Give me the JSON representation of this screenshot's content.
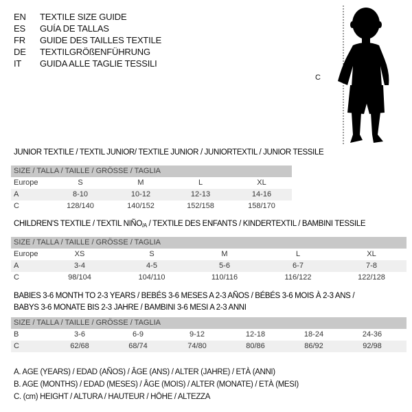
{
  "languages": [
    {
      "code": "EN",
      "title": "TEXTILE SIZE GUIDE"
    },
    {
      "code": "ES",
      "title": "GUÍA DE TALLAS"
    },
    {
      "code": "FR",
      "title": "GUIDE DES TAILLES TEXTILE"
    },
    {
      "code": "DE",
      "title": "TEXTILGRÖßENFÜHRUNG"
    },
    {
      "code": "IT",
      "title": "GUIDA ALLE TAGLIE TESSILI"
    }
  ],
  "figure": {
    "measure_label": "C",
    "icon": "child-silhouette-icon"
  },
  "junior": {
    "title": "JUNIOR TEXTILE / TEXTIL JUNIOR/ TEXTILE JUNIOR / JUNIORTEXTIL / JUNIOR TESSILE",
    "header": "SIZE / TALLA / TAILLE / GRÖSSE / TAGLIA",
    "rows": [
      {
        "label": "Europe",
        "values": [
          "S",
          "M",
          "L",
          "XL"
        ]
      },
      {
        "label": "A",
        "values": [
          "8-10",
          "10-12",
          "12-13",
          "14-16"
        ]
      },
      {
        "label": "C",
        "values": [
          "128/140",
          "140/152",
          "152/158",
          "158/170"
        ]
      }
    ]
  },
  "children": {
    "title_main": "CHILDREN'S TEXTILE / TEXTIL NIÑO",
    "title_sub": "/A",
    "title_rest": " / TEXTILE DES ENFANTS / KINDERTEXTIL / BAMBINI TESSILE",
    "header": "SIZE / TALLA / TAILLE / GRÖSSE / TAGLIA",
    "rows": [
      {
        "label": "Europe",
        "values": [
          "XS",
          "S",
          "M",
          "L",
          "XL"
        ]
      },
      {
        "label": "A",
        "values": [
          "3-4",
          "4-5",
          "5-6",
          "6-7",
          "7-8"
        ]
      },
      {
        "label": "C",
        "values": [
          "98/104",
          "104/110",
          "110/116",
          "116/122",
          "122/128"
        ]
      }
    ]
  },
  "babies": {
    "title_line1": "BABIES 3-6 MONTH TO 2-3 YEARS / BEBÉS 3-6 MESES A 2-3 AÑOS / BÉBÉS 3-6 MOIS À 2-3 ANS /",
    "title_line2": "BABYS 3-6 MONATE BIS 2-3 JAHRE / BAMBINI 3-6 MESI A 2-3 ANNI",
    "header": "SIZE / TALLA / TAILLE / GRÖSSE / TAGLIA",
    "rows": [
      {
        "label": "B",
        "values": [
          "3-6",
          "6-9",
          "9-12",
          "12-18",
          "18-24",
          "24-36"
        ]
      },
      {
        "label": "C",
        "values": [
          "62/68",
          "68/74",
          "74/80",
          "80/86",
          "86/92",
          "92/98"
        ]
      }
    ]
  },
  "legend": [
    "A. AGE (YEARS) / EDAD (AÑOS) / ÂGE (ANS) / ALTER (JAHRE) / ETÀ (ANNI)",
    "B. AGE (MONTHS) / EDAD (MESES) / ÂGE (MOIS) / ALTER (MONATE) / ETÀ (MESI)",
    "C. (cm) HEIGHT / ALTURA / HAUTEUR / HÖHE / ALTEZZA"
  ]
}
